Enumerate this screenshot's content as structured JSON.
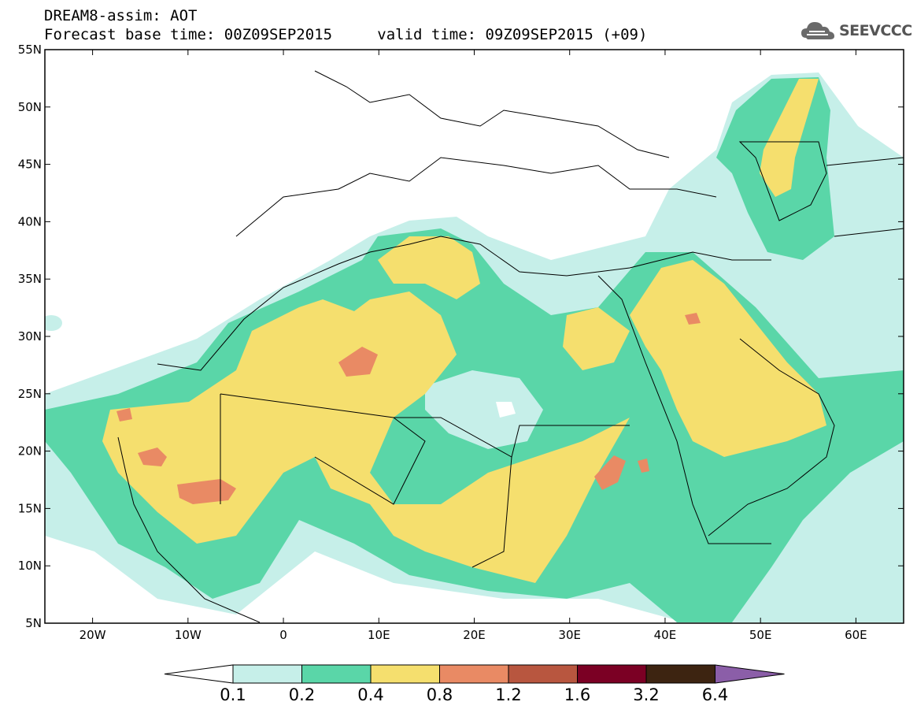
{
  "header": {
    "line1": "DREAM8-assim: AOT",
    "line2_base": "Forecast base time: 00Z09SEP2015",
    "line2_valid": "valid time: 09Z09SEP2015 (+09)"
  },
  "logo": {
    "text": "SEEVCCC",
    "icon": "cloud-icon"
  },
  "map": {
    "lon_range": [
      -25,
      65
    ],
    "lat_range": [
      5,
      55
    ],
    "lat_labels": [
      "55N",
      "50N",
      "45N",
      "40N",
      "35N",
      "30N",
      "25N",
      "20N",
      "15N",
      "10N",
      "5N"
    ],
    "lon_labels": [
      "20W",
      "10W",
      "0",
      "10E",
      "20E",
      "30E",
      "40E",
      "50E",
      "60E"
    ]
  },
  "colorbar": {
    "labels": [
      "0.1",
      "0.2",
      "0.4",
      "0.8",
      "1.2",
      "1.6",
      "3.2",
      "6.4"
    ],
    "colors": [
      "#ffffff",
      "#c6efe9",
      "#5ad6a8",
      "#f5df6e",
      "#e98a64",
      "#b8563f",
      "#7b0024",
      "#3d2411",
      "#8b5ea8"
    ]
  }
}
